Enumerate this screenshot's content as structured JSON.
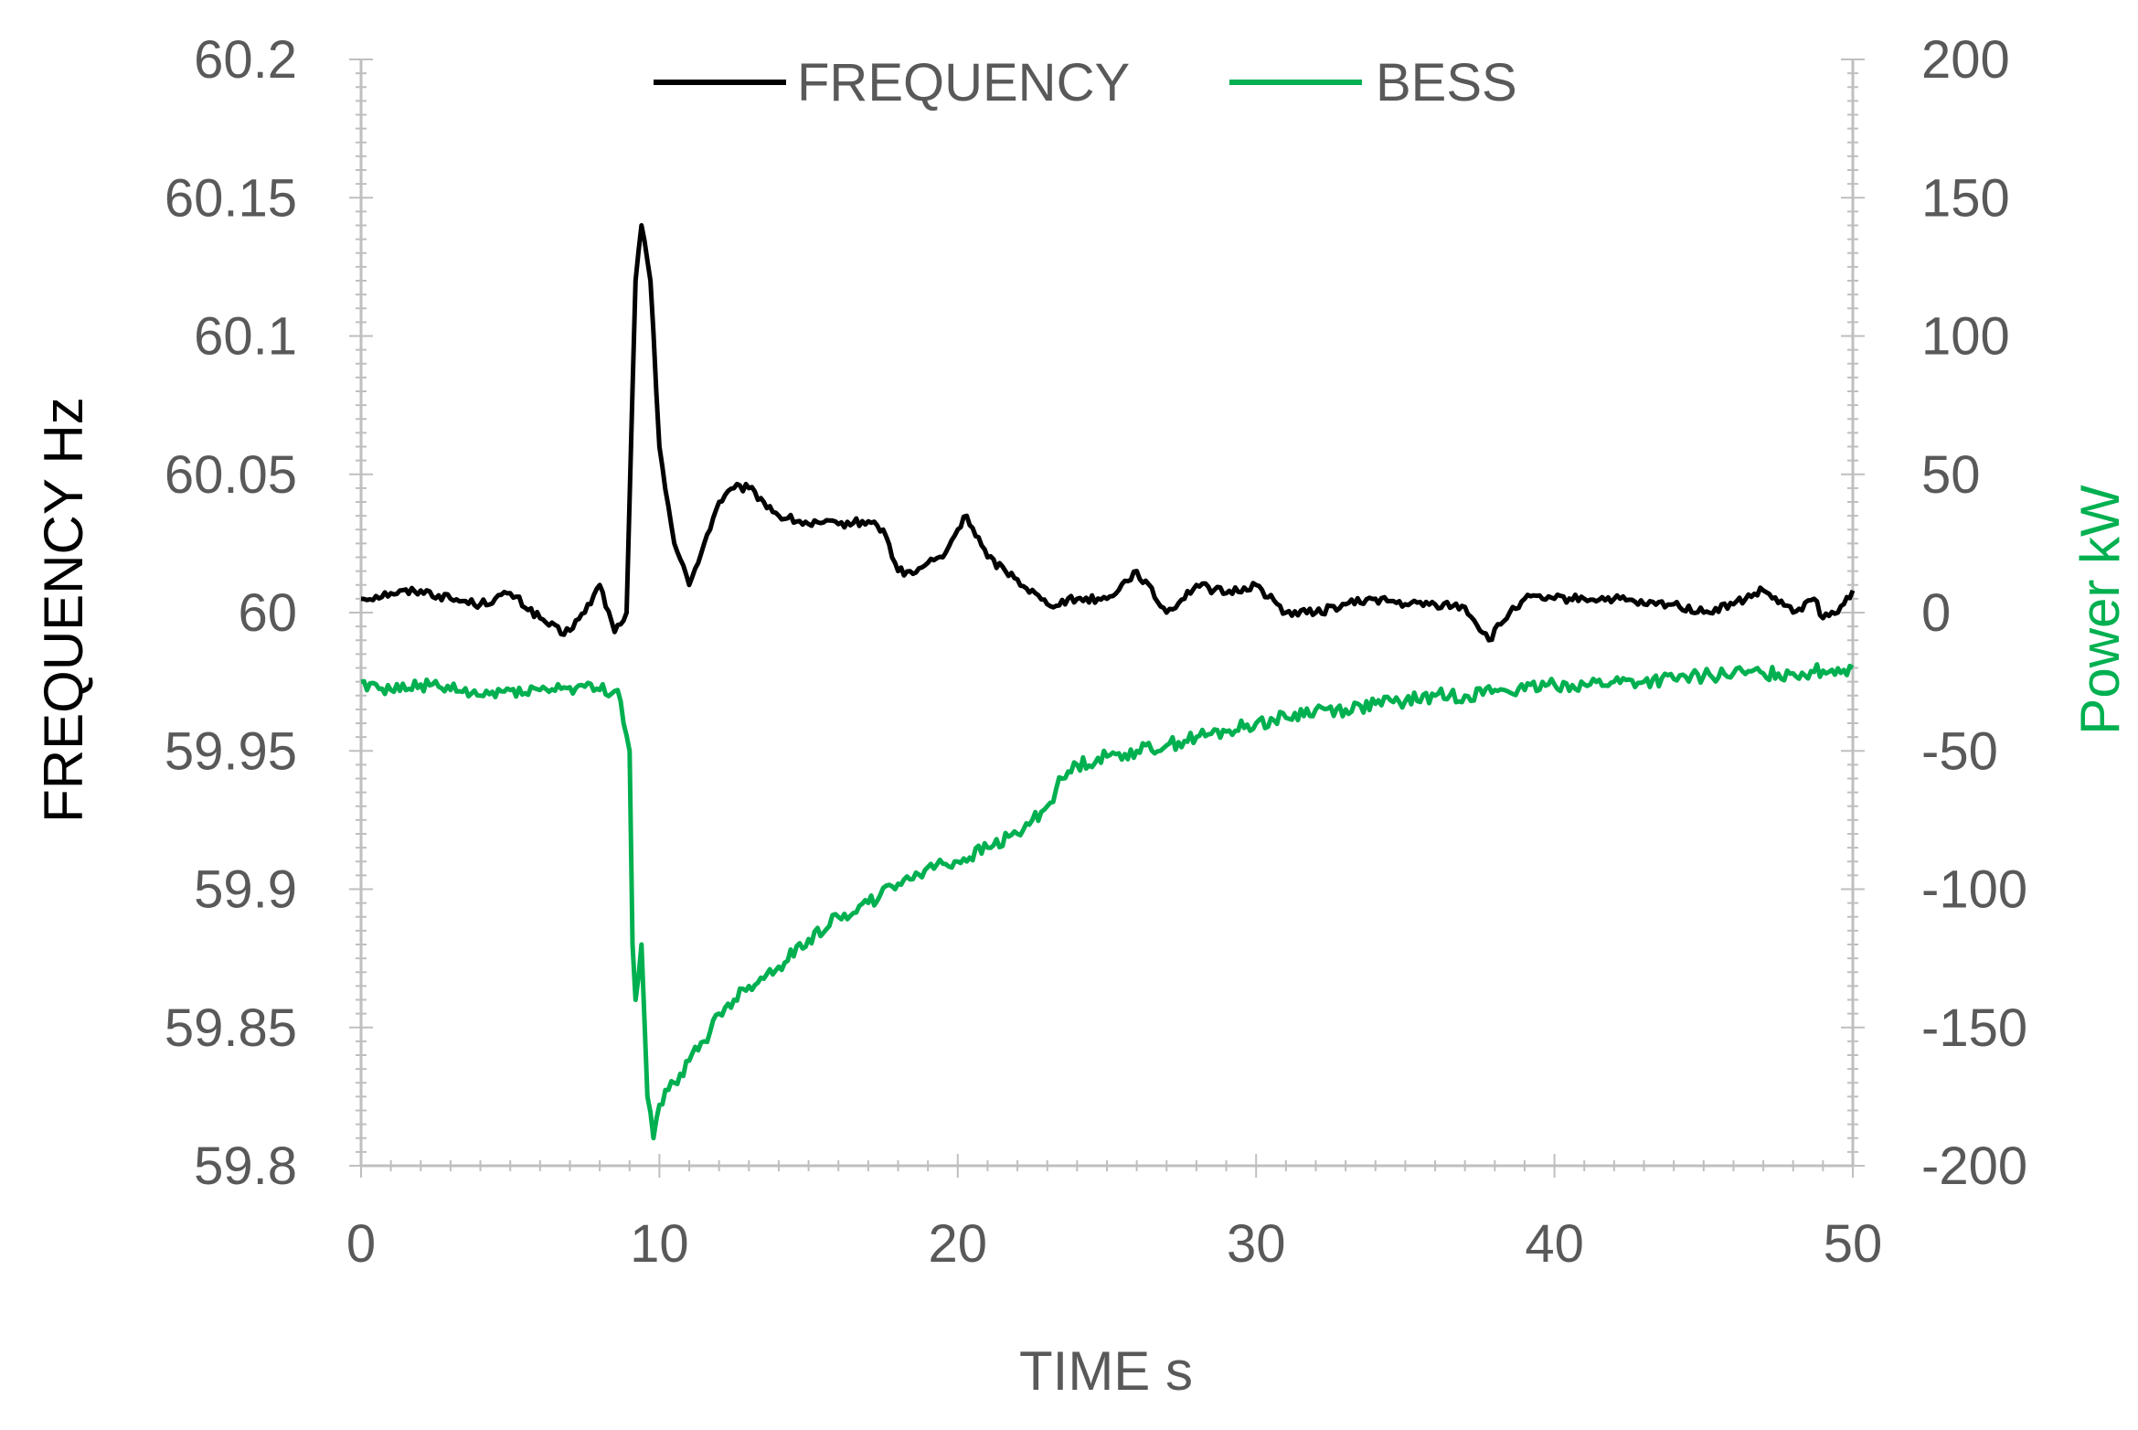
{
  "chart_data": {
    "type": "line",
    "title": "",
    "xlabel": "TIME s",
    "ylabel_left": "FREQUENCY Hz",
    "ylabel_right": "Power kW",
    "xlim": [
      0,
      50
    ],
    "ylim_left": [
      59.8,
      60.2
    ],
    "ylim_right": [
      -200,
      200
    ],
    "grid": false,
    "legend": "top-center",
    "x_ticks": [
      "0",
      "10",
      "20",
      "30",
      "40",
      "50"
    ],
    "y_left_ticks": [
      "59.8",
      "59.85",
      "59.9",
      "59.95",
      "60",
      "60.05",
      "60.1",
      "60.15",
      "60.2"
    ],
    "y_right_ticks": [
      "-200",
      "-150",
      "-100",
      "-50",
      "0",
      "50",
      "100",
      "150",
      "200"
    ],
    "series": [
      {
        "name": "FREQUENCY",
        "axis": "left",
        "color": "#000000",
        "x": [
          0,
          1,
          2,
          3,
          4,
          5,
          6,
          6.8,
          7.5,
          8,
          8.5,
          8.9,
          9.2,
          9.4,
          9.7,
          10,
          10.5,
          11,
          11.5,
          12,
          12.5,
          13,
          13.5,
          14,
          15,
          16,
          17,
          17.5,
          18,
          18.5,
          19,
          19.5,
          20,
          20.3,
          21,
          22,
          23,
          24,
          25,
          26,
          27,
          28,
          29,
          30,
          31,
          32,
          33,
          34,
          35,
          36,
          37,
          37.8,
          38.5,
          39,
          40,
          41,
          42,
          43,
          44,
          45,
          46,
          47,
          48,
          48.7,
          49,
          49.5,
          50
        ],
        "values": [
          60.005,
          60.007,
          60.008,
          60.005,
          60.003,
          60.007,
          59.998,
          59.992,
          60.0,
          60.01,
          59.993,
          60.0,
          60.12,
          60.14,
          60.12,
          60.06,
          60.025,
          60.01,
          60.025,
          60.04,
          60.045,
          60.045,
          60.04,
          60.035,
          60.032,
          60.032,
          60.033,
          60.03,
          60.015,
          60.014,
          60.018,
          60.02,
          60.03,
          60.035,
          60.02,
          60.012,
          60.003,
          60.005,
          60.005,
          60.015,
          60.0,
          60.01,
          60.007,
          60.01,
          60.0,
          60.0,
          60.003,
          60.005,
          60.003,
          60.003,
          60.002,
          59.99,
          60.0,
          60.005,
          60.005,
          60.005,
          60.005,
          60.003,
          60.003,
          60.0,
          60.003,
          60.008,
          60.0,
          60.005,
          59.998,
          60.0,
          60.008
        ]
      },
      {
        "name": "BESS",
        "axis": "right",
        "color": "#00b050",
        "x": [
          0,
          1,
          2,
          3,
          4,
          5,
          6,
          7,
          8,
          8.6,
          9.0,
          9.1,
          9.2,
          9.4,
          9.6,
          9.8,
          10,
          10.5,
          11,
          11.5,
          12,
          12.5,
          13,
          14,
          15,
          16,
          17,
          18,
          19,
          20,
          21,
          22,
          22.5,
          23,
          23.5,
          24,
          25,
          26,
          27,
          28,
          29,
          30,
          31,
          32,
          33,
          34,
          35,
          36,
          37,
          38,
          39,
          40,
          41,
          42,
          43,
          44,
          45,
          46,
          47,
          48,
          49,
          50
        ],
        "values": [
          -25,
          -28,
          -26,
          -28,
          -30,
          -28,
          -28,
          -27,
          -28,
          -28,
          -50,
          -120,
          -140,
          -120,
          -175,
          -190,
          -178,
          -170,
          -162,
          -155,
          -145,
          -140,
          -135,
          -128,
          -118,
          -110,
          -105,
          -98,
          -92,
          -90,
          -85,
          -80,
          -75,
          -70,
          -60,
          -55,
          -52,
          -50,
          -48,
          -45,
          -43,
          -40,
          -38,
          -35,
          -35,
          -33,
          -32,
          -30,
          -30,
          -28,
          -28,
          -26,
          -26,
          -25,
          -25,
          -24,
          -23,
          -22,
          -22,
          -22,
          -21,
          -20
        ]
      }
    ]
  },
  "colors": {
    "frequency": "#000000",
    "bess": "#00b050",
    "axis": "#bfbfbf",
    "tick_text": "#595959"
  }
}
